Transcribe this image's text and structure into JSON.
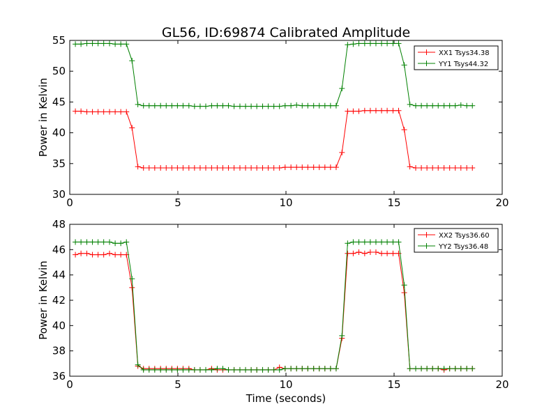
{
  "title": "GL56, ID:69874 Calibrated Amplitude",
  "chart_data": [
    {
      "type": "line",
      "xlabel": "",
      "ylabel": "Power in Kelvin",
      "xlim": [
        0,
        20
      ],
      "ylim": [
        30,
        55
      ],
      "xticks": [
        "0",
        "5",
        "10",
        "15",
        "20"
      ],
      "yticks": [
        "30",
        "35",
        "40",
        "45",
        "50",
        "55"
      ],
      "legend_position": "top-right",
      "x": [
        0.26,
        0.52,
        0.79,
        1.05,
        1.31,
        1.57,
        1.84,
        2.1,
        2.36,
        2.62,
        2.88,
        3.15,
        3.41,
        3.67,
        3.93,
        4.2,
        4.46,
        4.72,
        4.98,
        5.24,
        5.51,
        5.77,
        6.03,
        6.29,
        6.56,
        6.82,
        7.08,
        7.34,
        7.6,
        7.87,
        8.13,
        8.39,
        8.65,
        8.92,
        9.18,
        9.44,
        9.7,
        9.96,
        10.23,
        10.49,
        10.75,
        11.01,
        11.28,
        11.54,
        11.8,
        12.06,
        12.32,
        12.59,
        12.85,
        13.11,
        13.37,
        13.64,
        13.9,
        14.16,
        14.42,
        14.68,
        14.95,
        15.21,
        15.47,
        15.73,
        16.0,
        16.26,
        16.52,
        16.78,
        17.04,
        17.31,
        17.57,
        17.83,
        18.09,
        18.36,
        18.62
      ],
      "series": [
        {
          "name": "XX1 Tsys34.38",
          "color": "#ff0000",
          "values": [
            43.5,
            43.5,
            43.4,
            43.4,
            43.4,
            43.4,
            43.4,
            43.4,
            43.4,
            43.4,
            40.8,
            34.5,
            34.3,
            34.3,
            34.3,
            34.3,
            34.3,
            34.3,
            34.3,
            34.3,
            34.3,
            34.3,
            34.3,
            34.3,
            34.3,
            34.3,
            34.3,
            34.3,
            34.3,
            34.3,
            34.3,
            34.3,
            34.3,
            34.3,
            34.3,
            34.3,
            34.3,
            34.4,
            34.4,
            34.4,
            34.4,
            34.4,
            34.4,
            34.4,
            34.4,
            34.4,
            34.4,
            36.8,
            43.5,
            43.5,
            43.5,
            43.6,
            43.6,
            43.6,
            43.6,
            43.6,
            43.6,
            43.6,
            40.5,
            34.5,
            34.3,
            34.3,
            34.3,
            34.3,
            34.3,
            34.3,
            34.3,
            34.3,
            34.3,
            34.3,
            34.3
          ]
        },
        {
          "name": "YY1 Tsys44.32",
          "color": "#008000",
          "values": [
            54.4,
            54.4,
            54.5,
            54.5,
            54.5,
            54.5,
            54.5,
            54.4,
            54.4,
            54.4,
            51.7,
            44.6,
            44.4,
            44.4,
            44.4,
            44.4,
            44.4,
            44.4,
            44.4,
            44.4,
            44.4,
            44.3,
            44.3,
            44.3,
            44.4,
            44.4,
            44.4,
            44.4,
            44.3,
            44.3,
            44.3,
            44.3,
            44.3,
            44.3,
            44.3,
            44.3,
            44.3,
            44.4,
            44.4,
            44.5,
            44.4,
            44.4,
            44.4,
            44.4,
            44.4,
            44.4,
            44.4,
            47.2,
            54.3,
            54.4,
            54.5,
            54.5,
            54.5,
            54.5,
            54.5,
            54.5,
            54.5,
            54.5,
            51.0,
            44.6,
            44.4,
            44.4,
            44.4,
            44.4,
            44.4,
            44.4,
            44.4,
            44.4,
            44.5,
            44.4,
            44.4
          ]
        }
      ]
    },
    {
      "type": "line",
      "xlabel": "Time (seconds)",
      "ylabel": "Power in Kelvin",
      "xlim": [
        0,
        20
      ],
      "ylim": [
        36,
        48
      ],
      "xticks": [
        "0",
        "5",
        "10",
        "15",
        "20"
      ],
      "yticks": [
        "36",
        "38",
        "40",
        "42",
        "44",
        "46",
        "48"
      ],
      "legend_position": "top-right",
      "x": [
        0.26,
        0.52,
        0.79,
        1.05,
        1.31,
        1.57,
        1.84,
        2.1,
        2.36,
        2.62,
        2.88,
        3.15,
        3.41,
        3.67,
        3.93,
        4.2,
        4.46,
        4.72,
        4.98,
        5.24,
        5.51,
        5.77,
        6.03,
        6.29,
        6.56,
        6.82,
        7.08,
        7.34,
        7.6,
        7.87,
        8.13,
        8.39,
        8.65,
        8.92,
        9.18,
        9.44,
        9.7,
        9.96,
        10.23,
        10.49,
        10.75,
        11.01,
        11.28,
        11.54,
        11.8,
        12.06,
        12.32,
        12.59,
        12.85,
        13.11,
        13.37,
        13.64,
        13.9,
        14.16,
        14.42,
        14.68,
        14.95,
        15.21,
        15.47,
        15.73,
        16.0,
        16.26,
        16.52,
        16.78,
        17.04,
        17.31,
        17.57,
        17.83,
        18.09,
        18.36,
        18.62
      ],
      "series": [
        {
          "name": "XX2 Tsys36.60",
          "color": "#ff0000",
          "values": [
            45.6,
            45.7,
            45.7,
            45.6,
            45.6,
            45.6,
            45.7,
            45.6,
            45.6,
            45.6,
            43.0,
            36.8,
            36.6,
            36.6,
            36.6,
            36.6,
            36.6,
            36.6,
            36.6,
            36.6,
            36.6,
            36.5,
            36.5,
            36.5,
            36.6,
            36.5,
            36.5,
            36.5,
            36.5,
            36.5,
            36.5,
            36.5,
            36.5,
            36.5,
            36.5,
            36.5,
            36.7,
            36.6,
            36.6,
            36.6,
            36.6,
            36.6,
            36.6,
            36.6,
            36.6,
            36.6,
            36.6,
            39.0,
            45.7,
            45.7,
            45.8,
            45.7,
            45.8,
            45.8,
            45.7,
            45.7,
            45.7,
            45.7,
            42.6,
            36.6,
            36.6,
            36.6,
            36.6,
            36.6,
            36.6,
            36.5,
            36.6,
            36.6,
            36.6,
            36.6,
            36.6
          ]
        },
        {
          "name": "YY2 Tsys36.48",
          "color": "#008000",
          "values": [
            46.6,
            46.6,
            46.6,
            46.6,
            46.6,
            46.6,
            46.6,
            46.5,
            46.5,
            46.6,
            43.7,
            36.9,
            36.5,
            36.5,
            36.5,
            36.5,
            36.5,
            36.5,
            36.5,
            36.5,
            36.5,
            36.5,
            36.5,
            36.5,
            36.5,
            36.6,
            36.6,
            36.5,
            36.5,
            36.5,
            36.5,
            36.5,
            36.5,
            36.5,
            36.5,
            36.5,
            36.5,
            36.6,
            36.6,
            36.6,
            36.6,
            36.6,
            36.6,
            36.6,
            36.6,
            36.6,
            36.6,
            39.2,
            46.5,
            46.6,
            46.6,
            46.6,
            46.6,
            46.6,
            46.6,
            46.6,
            46.6,
            46.6,
            43.2,
            36.6,
            36.6,
            36.6,
            36.6,
            36.6,
            36.6,
            36.6,
            36.6,
            36.6,
            36.6,
            36.6,
            36.6
          ]
        }
      ]
    }
  ]
}
